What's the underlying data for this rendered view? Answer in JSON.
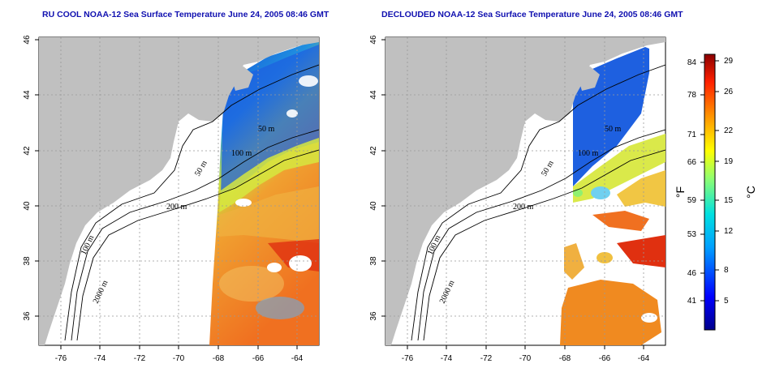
{
  "panels": [
    {
      "title": "RU COOL NOAA-12 Sea Surface Temperature June 24, 2005 08:46 GMT",
      "variant": "raw"
    },
    {
      "title": "DECLOUDED NOAA-12 Sea Surface Temperature June 24, 2005 08:46 GMT",
      "variant": "declouded"
    }
  ],
  "axes": {
    "lon_ticks": [
      "-76",
      "-74",
      "-72",
      "-70",
      "-68",
      "-66",
      "-64"
    ],
    "lat_ticks": [
      "36",
      "38",
      "40",
      "42",
      "44",
      "46"
    ]
  },
  "contours": {
    "left": [
      "50 m",
      "100 m",
      "200 m",
      "50 m",
      "2000 m",
      "100 m"
    ],
    "right": [
      "50 m",
      "100 m",
      "200 m",
      "50 m",
      "2000 m",
      "100 m"
    ]
  },
  "colorbar": {
    "fahrenheit_ticks": [
      "84",
      "78",
      "71",
      "66",
      "59",
      "53",
      "46",
      "41"
    ],
    "celsius_ticks": [
      "29",
      "26",
      "22",
      "19",
      "15",
      "12",
      "8",
      "5"
    ],
    "fahrenheit_label": "°F",
    "celsius_label": "°C"
  },
  "colors": {
    "land": "#c0c0c0",
    "title": "#1010b0",
    "cold": "#0030d0",
    "warm": "#e05000"
  }
}
